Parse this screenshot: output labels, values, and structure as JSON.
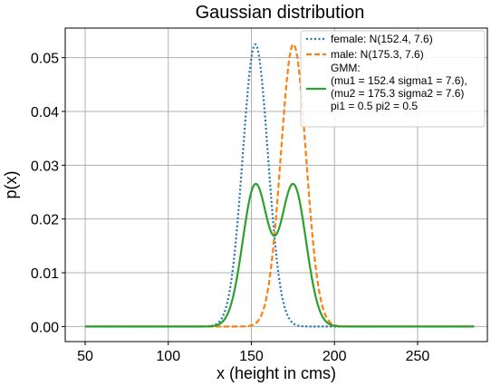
{
  "chart_data": {
    "type": "line",
    "title": "Gaussian distribution",
    "xlabel": "x (height in cms)",
    "ylabel": "p(x)",
    "xlim": [
      38,
      292
    ],
    "ylim": [
      -0.0028,
      0.0555
    ],
    "xticks": [
      50,
      100,
      150,
      200,
      250
    ],
    "yticks": [
      0.0,
      0.01,
      0.02,
      0.03,
      0.04,
      0.05
    ],
    "ytick_labels": [
      "0.00",
      "0.01",
      "0.02",
      "0.03",
      "0.04",
      "0.05"
    ],
    "grid": true,
    "legend_position": "top-right",
    "x_range": [
      50,
      284
    ],
    "series": [
      {
        "name": "female: N(152.4, 7.6)",
        "kind": "gaussian",
        "mu": 152.4,
        "sigma": 7.6,
        "color": "#1f77b4",
        "style": "dotted"
      },
      {
        "name": "male: N(175.3, 7.6)",
        "kind": "gaussian",
        "mu": 175.3,
        "sigma": 7.6,
        "color": "#ff7f0e",
        "style": "dashed"
      },
      {
        "name": "GMM:",
        "name_lines": [
          "GMM:",
          "(mu1 = 152.4 sigma1 = 7.6),",
          "(mu2 = 175.3 sigma2 = 7.6)",
          " pi1 = 0.5 pi2 = 0.5"
        ],
        "kind": "mixture",
        "components": [
          {
            "mu": 152.4,
            "sigma": 7.6,
            "weight": 0.5
          },
          {
            "mu": 175.3,
            "sigma": 7.6,
            "weight": 0.5
          }
        ],
        "color": "#2ca02c",
        "style": "solid"
      }
    ]
  }
}
